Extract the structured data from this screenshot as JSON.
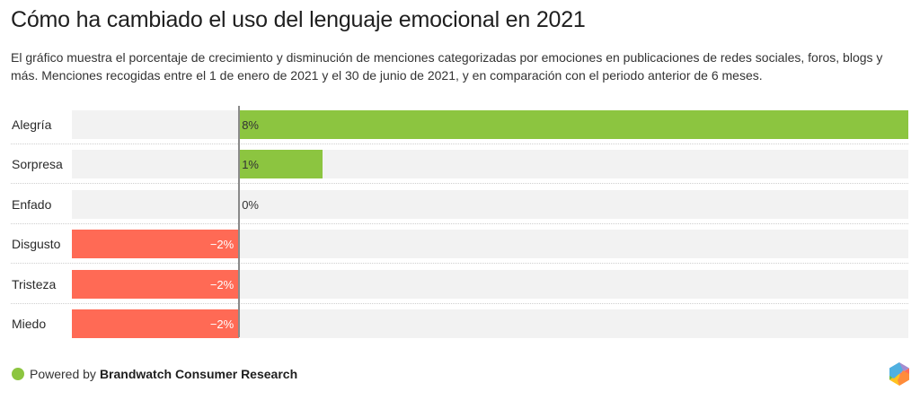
{
  "title": "Cómo ha cambiado el uso del lenguaje emocional en 2021",
  "subtitle": "El gráfico muestra el porcentaje de crecimiento y disminución de menciones categorizadas por emociones en publicaciones de redes sociales, foros, blogs y más. Menciones recogidas entre el 1 de enero de 2021 y el 30 de junio de 2021, y en comparación con el periodo anterior de 6 meses.",
  "footer": {
    "prefix": "Powered by",
    "brand": "Brandwatch Consumer Research"
  },
  "colors": {
    "positive": "#8cc540",
    "negative": "#ff6a55",
    "track": "#f2f2f2",
    "zero_line": "#8a8a8a"
  },
  "chart_data": {
    "type": "bar",
    "orientation": "horizontal",
    "title": "Cómo ha cambiado el uso del lenguaje emocional en 2021",
    "xlabel": "",
    "ylabel": "",
    "unit": "%",
    "xlim": [
      -2,
      8
    ],
    "grid": false,
    "categories": [
      "Alegría",
      "Sorpresa",
      "Enfado",
      "Disgusto",
      "Tristeza",
      "Miedo"
    ],
    "values": [
      8,
      1,
      0,
      -2,
      -2,
      -2
    ],
    "labels": [
      "8%",
      "1%",
      "0%",
      "−2%",
      "−2%",
      "−2%"
    ]
  }
}
